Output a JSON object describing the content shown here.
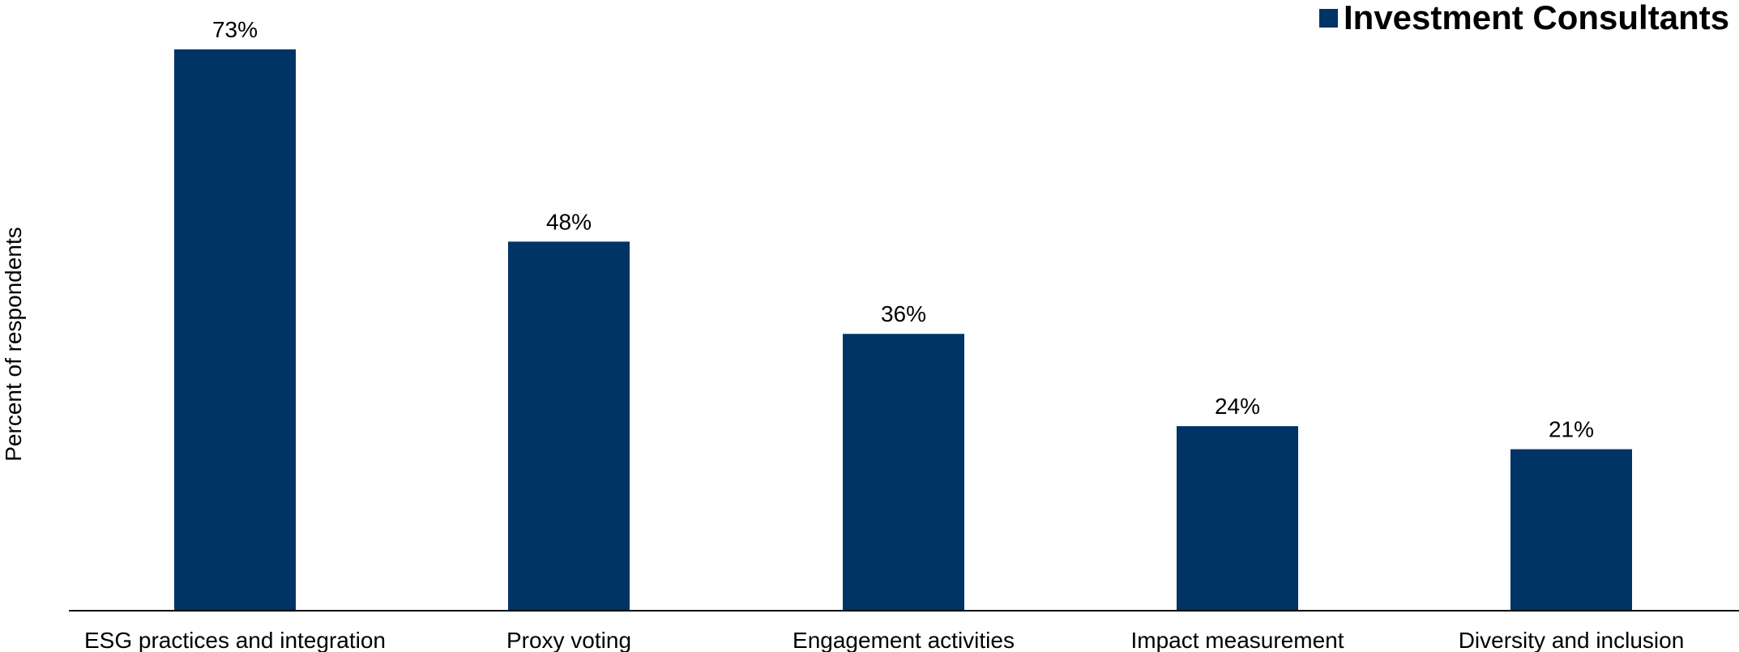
{
  "chart_data": {
    "type": "bar",
    "title": "",
    "xlabel": "",
    "ylabel": "Percent of respondents",
    "categories": [
      "ESG practices and integration",
      "Proxy voting",
      "Engagement activities",
      "Impact measurement",
      "Diversity and inclusion"
    ],
    "series": [
      {
        "name": "Investment Consultants",
        "values": [
          73,
          48,
          36,
          24,
          21
        ],
        "data_labels": [
          "73%",
          "48%",
          "36%",
          "24%",
          "21%"
        ]
      }
    ],
    "ylim": [
      0,
      80
    ],
    "grid": false,
    "legend": "top-right",
    "colors": {
      "series": "#003366",
      "axis": "#000000",
      "text": "#000000",
      "background": "#ffffff"
    }
  }
}
